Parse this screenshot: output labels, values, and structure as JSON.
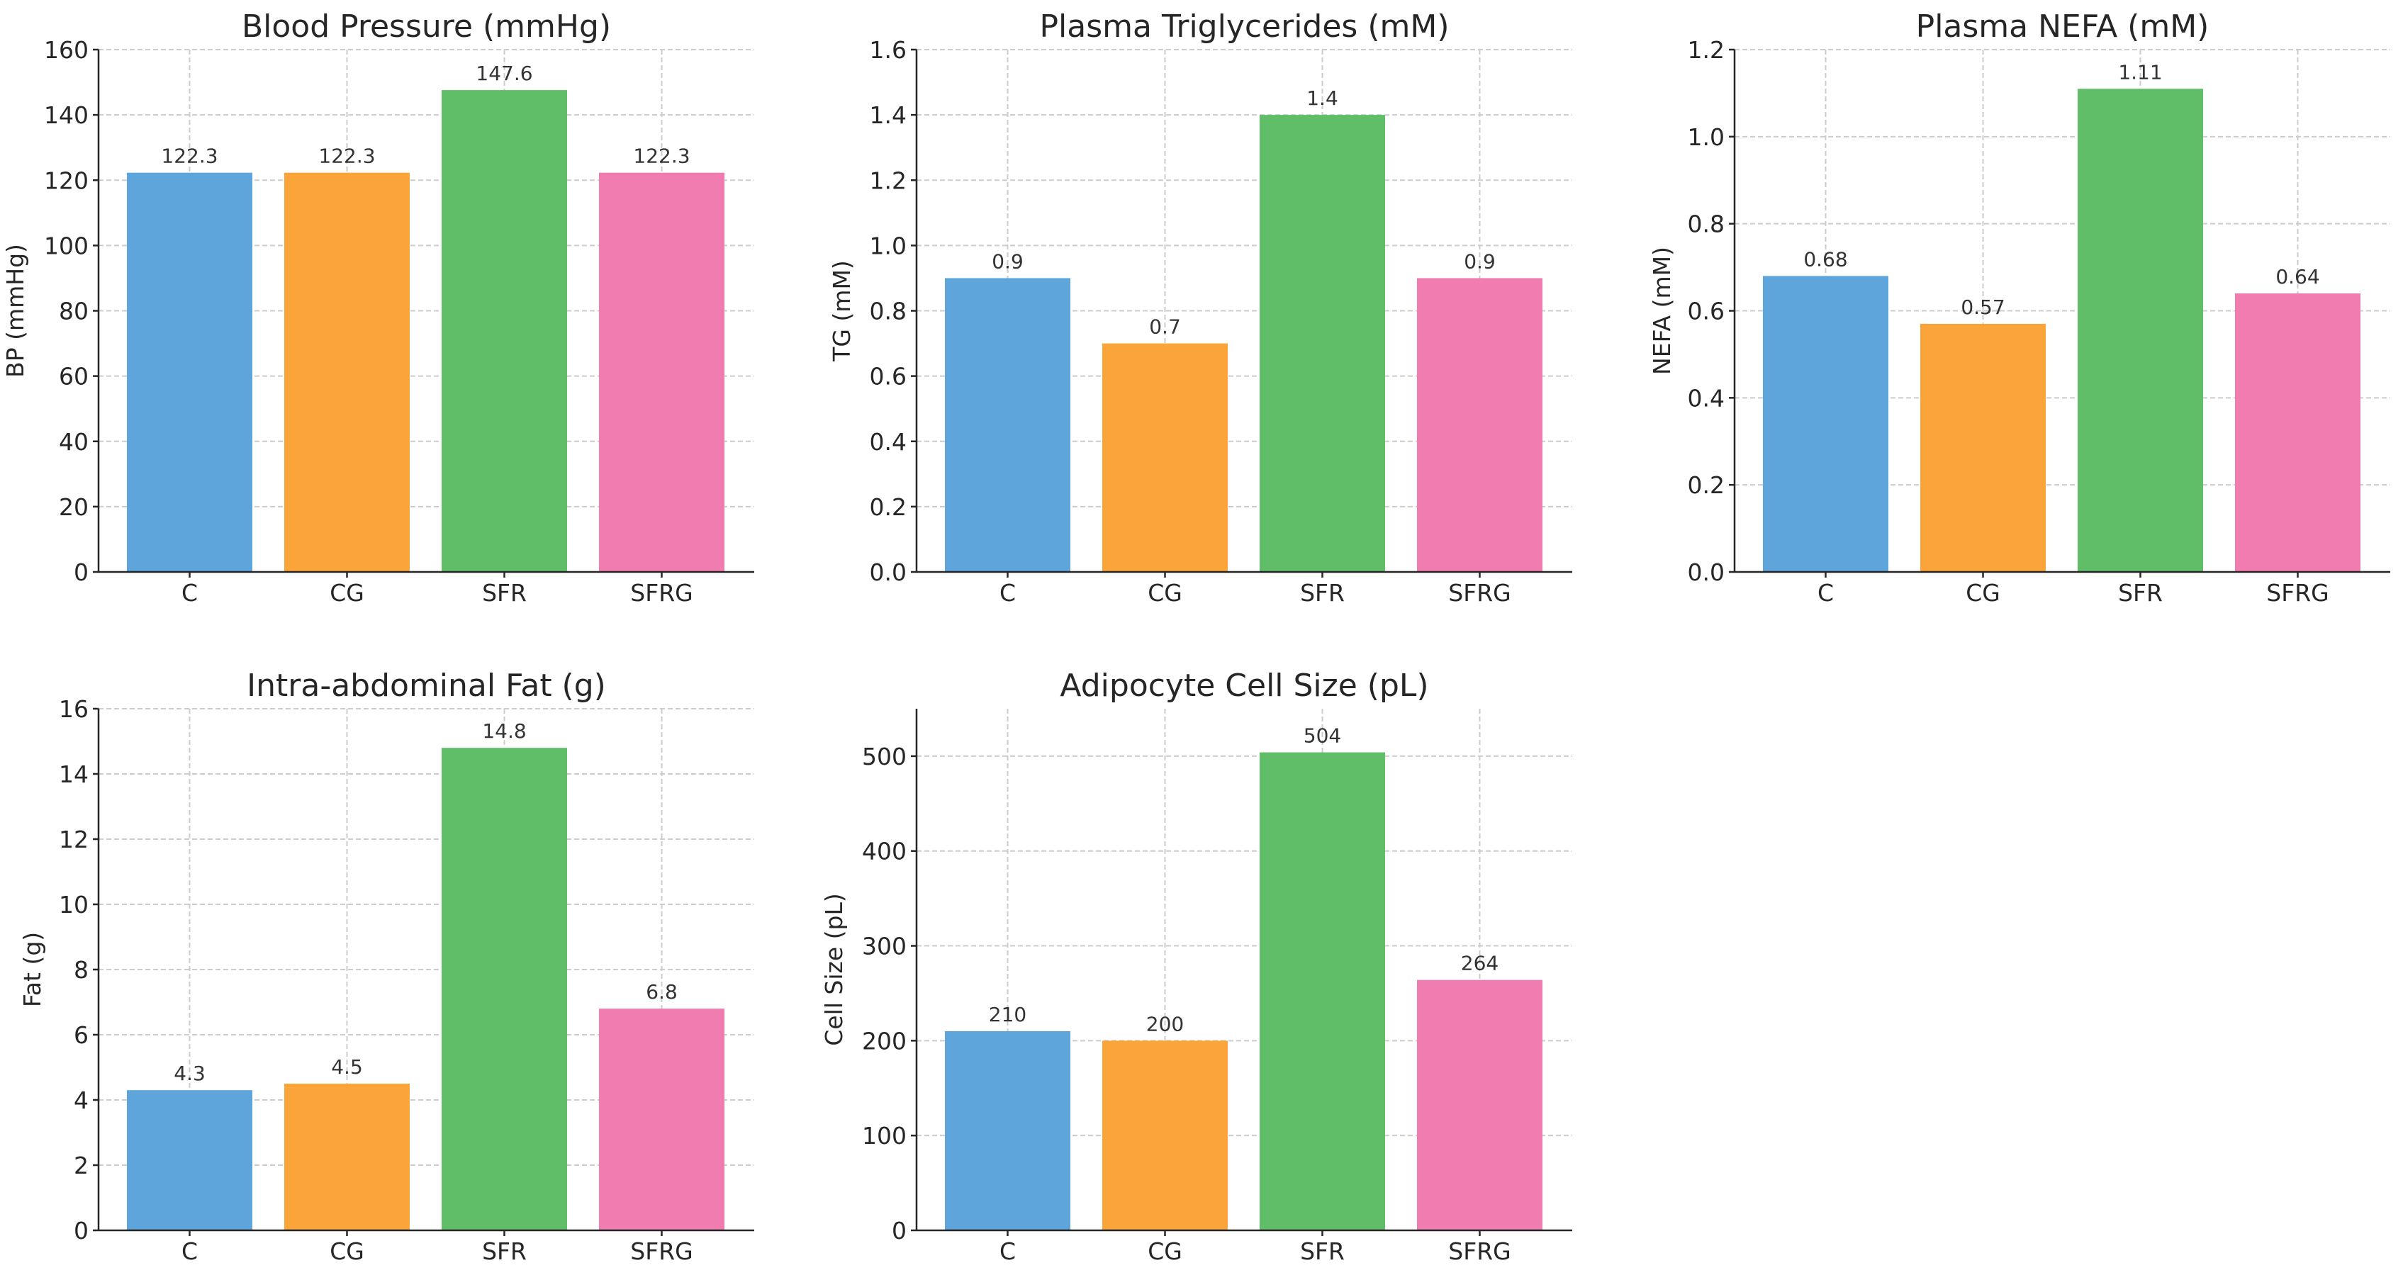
{
  "colors": {
    "C": "#5DA5DA",
    "CG": "#FAA43A",
    "SFR": "#60BD68",
    "SFRG": "#F17CB0"
  },
  "chart_data": [
    {
      "type": "bar",
      "title": "Blood Pressure (mmHg)",
      "xlabel": "",
      "ylabel": "BP (mmHg)",
      "categories": [
        "C",
        "CG",
        "SFR",
        "SFRG"
      ],
      "values": [
        122.3,
        122.3,
        147.6,
        122.3
      ],
      "value_labels": [
        "122.3",
        "122.3",
        "147.6",
        "122.3"
      ],
      "ylim": [
        0,
        160
      ],
      "yticks": [
        0,
        20,
        40,
        60,
        80,
        100,
        120,
        140,
        160
      ],
      "ytick_labels": [
        "0",
        "20",
        "40",
        "60",
        "80",
        "100",
        "120",
        "140",
        "160"
      ],
      "grid": true
    },
    {
      "type": "bar",
      "title": "Plasma Triglycerides (mM)",
      "xlabel": "",
      "ylabel": "TG (mM)",
      "categories": [
        "C",
        "CG",
        "SFR",
        "SFRG"
      ],
      "values": [
        0.9,
        0.7,
        1.4,
        0.9
      ],
      "value_labels": [
        "0.9",
        "0.7",
        "1.4",
        "0.9"
      ],
      "ylim": [
        0,
        1.6
      ],
      "yticks": [
        0,
        0.2,
        0.4,
        0.6,
        0.8,
        1.0,
        1.2,
        1.4,
        1.6
      ],
      "ytick_labels": [
        "0.0",
        "0.2",
        "0.4",
        "0.6",
        "0.8",
        "1.0",
        "1.2",
        "1.4",
        "1.6"
      ],
      "grid": true
    },
    {
      "type": "bar",
      "title": "Plasma NEFA (mM)",
      "xlabel": "",
      "ylabel": "NEFA (mM)",
      "categories": [
        "C",
        "CG",
        "SFR",
        "SFRG"
      ],
      "values": [
        0.68,
        0.57,
        1.11,
        0.64
      ],
      "value_labels": [
        "0.68",
        "0.57",
        "1.11",
        "0.64"
      ],
      "ylim": [
        0,
        1.2
      ],
      "yticks": [
        0,
        0.2,
        0.4,
        0.6,
        0.8,
        1.0,
        1.2
      ],
      "ytick_labels": [
        "0.0",
        "0.2",
        "0.4",
        "0.6",
        "0.8",
        "1.0",
        "1.2"
      ],
      "grid": true
    },
    {
      "type": "bar",
      "title": "Intra-abdominal Fat (g)",
      "xlabel": "",
      "ylabel": "Fat (g)",
      "categories": [
        "C",
        "CG",
        "SFR",
        "SFRG"
      ],
      "values": [
        4.3,
        4.5,
        14.8,
        6.8
      ],
      "value_labels": [
        "4.3",
        "4.5",
        "14.8",
        "6.8"
      ],
      "ylim": [
        0,
        16
      ],
      "yticks": [
        0,
        2,
        4,
        6,
        8,
        10,
        12,
        14,
        16
      ],
      "ytick_labels": [
        "0",
        "2",
        "4",
        "6",
        "8",
        "10",
        "12",
        "14",
        "16"
      ],
      "grid": true
    },
    {
      "type": "bar",
      "title": "Adipocyte Cell Size (pL)",
      "xlabel": "",
      "ylabel": "Cell Size (pL)",
      "categories": [
        "C",
        "CG",
        "SFR",
        "SFRG"
      ],
      "values": [
        210,
        200,
        504,
        264
      ],
      "value_labels": [
        "210",
        "200",
        "504",
        "264"
      ],
      "ylim": [
        0,
        550
      ],
      "yticks": [
        0,
        100,
        200,
        300,
        400,
        500
      ],
      "ytick_labels": [
        "0",
        "100",
        "200",
        "300",
        "400",
        "500"
      ],
      "grid": true
    }
  ]
}
